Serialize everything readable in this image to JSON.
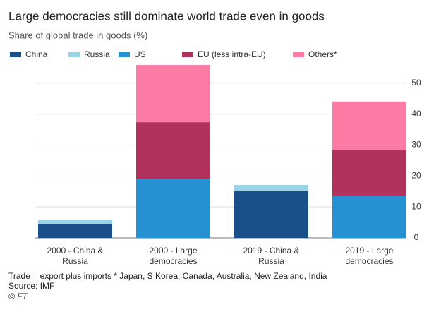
{
  "chart_data": {
    "type": "stacked_bar",
    "title": "Large democracies still dominate world trade even in goods",
    "subtitle": "Share of global trade in goods (%)",
    "categories": [
      "2000 - China & Russia",
      "2000 - Large democracies",
      "2019 - China & Russia",
      "2019 - Large democracies"
    ],
    "series": [
      {
        "name": "China",
        "color": "#1b4f8a",
        "values": [
          4.6,
          0,
          15.1,
          0
        ]
      },
      {
        "name": "Russia",
        "color": "#9ad3e8",
        "values": [
          1.3,
          0,
          2.0,
          0
        ]
      },
      {
        "name": "US",
        "color": "#2590d2",
        "values": [
          0,
          19.0,
          0,
          13.7
        ]
      },
      {
        "name": "EU (less intra-EU)",
        "color": "#b0315b",
        "values": [
          0,
          18.4,
          0,
          14.8
        ]
      },
      {
        "name": "Others*",
        "color": "#fc7ba4",
        "values": [
          0,
          18.5,
          0,
          15.6
        ]
      }
    ],
    "ylim": [
      0,
      55
    ],
    "yticks": [
      0,
      10,
      20,
      30,
      40,
      50
    ],
    "grid": true,
    "notes": [
      "Trade = export plus imports  * Japan, S Korea, Canada, Australia, New Zealand, India",
      "Source: IMF",
      "© FT"
    ]
  }
}
